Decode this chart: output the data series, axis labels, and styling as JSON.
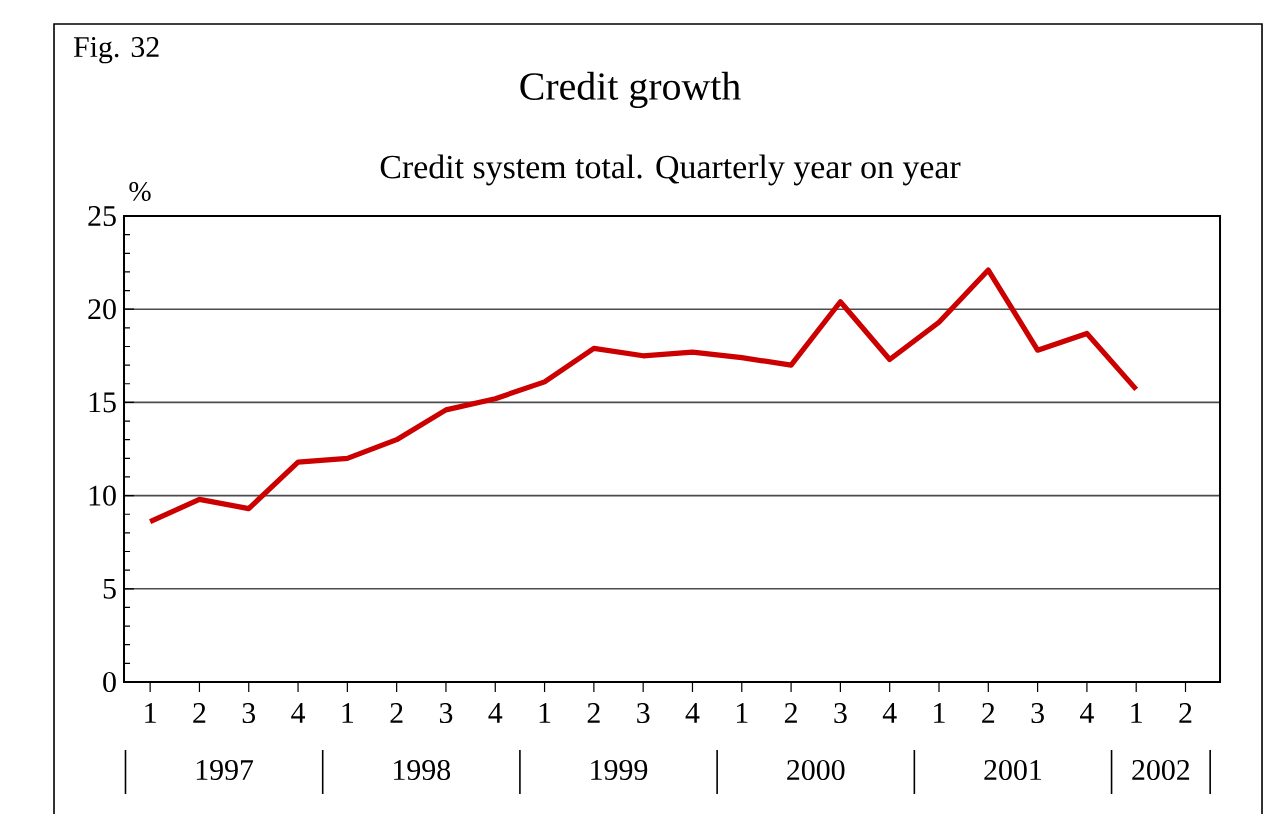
{
  "chart_data": {
    "type": "line",
    "title": "Credit growth",
    "subtitle": "Credit system total. Quarterly year on year",
    "ylabel": "%",
    "categories": [
      "1",
      "2",
      "3",
      "4",
      "1",
      "2",
      "3",
      "4",
      "1",
      "2",
      "3",
      "4",
      "1",
      "2",
      "3",
      "4",
      "1",
      "2",
      "3",
      "4",
      "1",
      "2"
    ],
    "series": [
      {
        "color": "#cc0000",
        "values": [
          8.6,
          9.8,
          9.3,
          11.8,
          12.0,
          13.0,
          14.6,
          15.2,
          16.1,
          17.9,
          17.5,
          17.7,
          17.4,
          17.0,
          20.4,
          17.3,
          19.3,
          22.1,
          17.8,
          18.7,
          15.7,
          null
        ]
      }
    ],
    "ylim": [
      0,
      25
    ],
    "yticks": [
      0,
      5,
      10,
      15,
      20,
      25
    ],
    "grid": "y",
    "marker": "none",
    "line_style": "solid",
    "annotations": [
      "Fig. 32",
      "1997",
      "1998",
      "1999",
      "2000",
      "2001",
      "2002"
    ]
  }
}
